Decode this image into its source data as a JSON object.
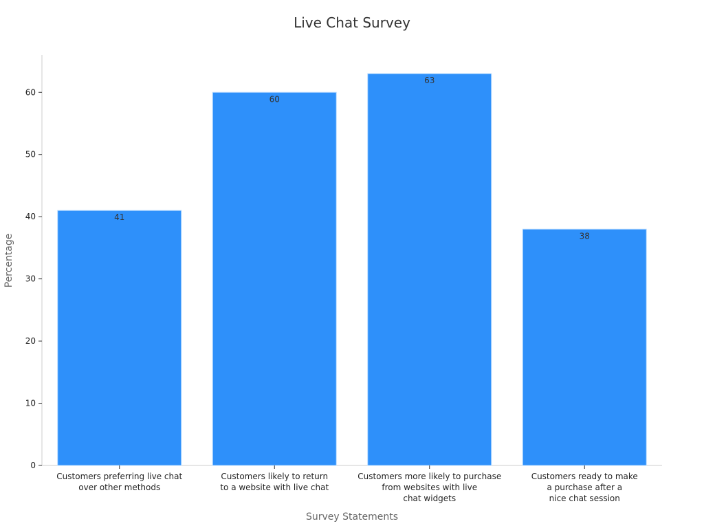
{
  "chart_data": {
    "type": "bar",
    "title": "Live Chat Survey",
    "xlabel": "Survey Statements",
    "ylabel": "Percentage",
    "ylim": [
      0,
      66
    ],
    "yticks": [
      0,
      10,
      20,
      30,
      40,
      50,
      60
    ],
    "grid": false,
    "legend": "none",
    "bar_color": "#2e90fa",
    "bar_edge_color": "#b9dcff",
    "categories": [
      [
        "Customers preferring live chat",
        "over other methods"
      ],
      [
        "Customers likely to return",
        "to a website with live chat"
      ],
      [
        "Customers more likely to purchase",
        "from websites with live",
        "chat widgets"
      ],
      [
        "Customers ready to make",
        "a purchase after a",
        "nice chat session"
      ]
    ],
    "values": [
      41,
      60,
      63,
      38
    ]
  }
}
